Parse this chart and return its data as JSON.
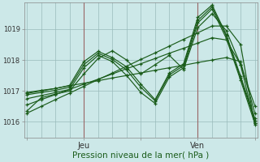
{
  "title": "",
  "xlabel": "Pression niveau de la mer( hPa )",
  "ylabel": "",
  "background_color": "#cce8e8",
  "line_color": "#1a5c1a",
  "grid_color": "#99bbbb",
  "vline_color": "#996666",
  "xtick_labels": [
    "",
    "Jeu",
    "",
    "Ven",
    ""
  ],
  "xtick_positions": [
    0,
    24,
    48,
    72,
    96
  ],
  "ytick_labels": [
    "1016",
    "1017",
    "1018",
    "1019"
  ],
  "ytick_positions": [
    1016,
    1017,
    1018,
    1019
  ],
  "ylim": [
    1015.5,
    1019.85
  ],
  "xlim": [
    -1,
    97
  ],
  "vlines": [
    24,
    72
  ],
  "series": [
    [
      0,
      1016.35,
      6,
      1016.78,
      12,
      1016.9,
      18,
      1017.0,
      24,
      1017.55,
      30,
      1018.05,
      36,
      1018.3,
      42,
      1018.0,
      48,
      1017.55,
      54,
      1017.85,
      60,
      1018.15,
      66,
      1017.7,
      72,
      1019.05,
      78,
      1019.5,
      84,
      1018.95,
      90,
      1017.85,
      96,
      1015.95
    ],
    [
      0,
      1016.75,
      6,
      1016.85,
      12,
      1016.95,
      18,
      1017.05,
      24,
      1017.75,
      30,
      1018.15,
      36,
      1017.95,
      42,
      1017.5,
      48,
      1016.95,
      54,
      1016.6,
      60,
      1017.45,
      66,
      1017.75,
      72,
      1019.2,
      78,
      1019.65,
      84,
      1018.7,
      90,
      1017.35,
      96,
      1015.95
    ],
    [
      0,
      1016.88,
      6,
      1016.95,
      12,
      1017.02,
      18,
      1017.12,
      24,
      1017.85,
      30,
      1018.22,
      36,
      1018.02,
      42,
      1017.68,
      48,
      1017.12,
      54,
      1016.68,
      60,
      1017.52,
      66,
      1017.82,
      72,
      1019.28,
      78,
      1019.72,
      84,
      1018.78,
      90,
      1017.42,
      96,
      1016.05
    ],
    [
      0,
      1016.95,
      6,
      1017.02,
      12,
      1017.08,
      18,
      1017.18,
      24,
      1017.95,
      30,
      1018.28,
      36,
      1018.08,
      42,
      1017.78,
      48,
      1017.22,
      54,
      1016.72,
      60,
      1017.58,
      66,
      1017.88,
      72,
      1019.38,
      78,
      1019.78,
      84,
      1018.82,
      90,
      1017.48,
      96,
      1016.12
    ],
    [
      0,
      1016.28,
      6,
      1016.5,
      12,
      1016.72,
      18,
      1016.93,
      24,
      1017.15,
      30,
      1017.37,
      36,
      1017.58,
      42,
      1017.8,
      48,
      1018.02,
      54,
      1018.23,
      60,
      1018.45,
      66,
      1018.67,
      72,
      1018.88,
      78,
      1019.1,
      84,
      1019.1,
      90,
      1018.5,
      96,
      1015.9
    ],
    [
      0,
      1016.55,
      6,
      1016.72,
      12,
      1016.88,
      18,
      1017.05,
      24,
      1017.22,
      30,
      1017.38,
      36,
      1017.55,
      42,
      1017.72,
      48,
      1017.88,
      54,
      1018.05,
      60,
      1018.22,
      66,
      1018.38,
      72,
      1018.55,
      78,
      1018.72,
      84,
      1018.65,
      90,
      1017.85,
      96,
      1016.52
    ],
    [
      0,
      1016.92,
      6,
      1017.0,
      12,
      1017.08,
      18,
      1017.17,
      24,
      1017.25,
      30,
      1017.33,
      36,
      1017.42,
      42,
      1017.5,
      48,
      1017.58,
      54,
      1017.67,
      60,
      1017.75,
      66,
      1017.83,
      72,
      1017.92,
      78,
      1018.0,
      84,
      1018.08,
      90,
      1017.95,
      96,
      1016.28
    ]
  ],
  "marker": "+",
  "markersize": 3,
  "linewidth": 0.85
}
